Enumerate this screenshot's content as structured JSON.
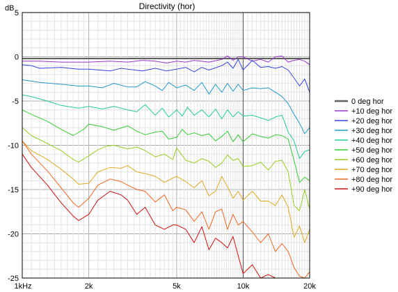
{
  "chart_data": {
    "type": "line",
    "title": "Directivity (hor)",
    "ylabel": "dB",
    "xlabel": "",
    "x_scale": "log",
    "xlim": [
      1000,
      20000
    ],
    "ylim": [
      -25,
      5
    ],
    "grid": true,
    "legend_placement": "right",
    "x_ticks": [
      {
        "value": 1000,
        "label": "1kHz"
      },
      {
        "value": 2000,
        "label": "2k"
      },
      {
        "value": 5000,
        "label": "5k"
      },
      {
        "value": 10000,
        "label": "10k"
      },
      {
        "value": 20000,
        "label": "20k"
      }
    ],
    "y_ticks": [
      {
        "value": 5,
        "label": "5"
      },
      {
        "value": 0,
        "label": "0"
      },
      {
        "value": -5,
        "label": "-5"
      },
      {
        "value": -10,
        "label": "-10"
      },
      {
        "value": -15,
        "label": "-15"
      },
      {
        "value": -20,
        "label": "-20"
      },
      {
        "value": -25,
        "label": "-25"
      }
    ],
    "series": [
      {
        "name": "0 deg hor",
        "color": "#5f5f5f",
        "x": [
          1000,
          1200,
          1500,
          2000,
          2500,
          3000,
          4000,
          5000,
          6000,
          7000,
          8000,
          9000,
          10000,
          12000,
          14000,
          16000,
          18000,
          20000
        ],
        "y": [
          -0.2,
          -0.2,
          -0.2,
          -0.2,
          -0.2,
          -0.2,
          -0.2,
          -0.2,
          -0.2,
          -0.2,
          -0.2,
          -0.2,
          -0.2,
          -0.2,
          -0.2,
          -0.2,
          -0.2,
          -0.2
        ]
      },
      {
        "name": "+10 deg hor",
        "color": "#9933cc",
        "x": [
          1000,
          1200,
          1500,
          2000,
          2500,
          3000,
          3500,
          4000,
          4500,
          5000,
          5500,
          6000,
          7000,
          8000,
          8500,
          9000,
          9500,
          10000,
          11000,
          12000,
          13000,
          14000,
          15000,
          16000,
          17000,
          18000,
          19000,
          20000
        ],
        "y": [
          -0.5,
          -0.5,
          -0.6,
          -0.6,
          -0.5,
          -0.6,
          -0.4,
          -0.5,
          -0.7,
          -0.5,
          -0.6,
          -0.4,
          -0.6,
          -0.3,
          0.1,
          -0.4,
          0.0,
          0.0,
          -0.5,
          -0.3,
          -0.6,
          0.0,
          0.1,
          -0.6,
          -0.4,
          -0.3,
          -0.5,
          -0.9
        ]
      },
      {
        "name": "+20 deg hor",
        "color": "#3344dd",
        "x": [
          1000,
          1100,
          1200,
          1500,
          1800,
          2000,
          2500,
          2800,
          3000,
          3500,
          4000,
          4500,
          5000,
          5500,
          6000,
          6500,
          7000,
          8000,
          8500,
          9000,
          9500,
          10000,
          11000,
          12000,
          13000,
          14000,
          15000,
          16000,
          17000,
          18000,
          19000,
          20000
        ],
        "y": [
          -0.9,
          -1.0,
          -1.3,
          -1.2,
          -1.4,
          -1.4,
          -1.6,
          -1.3,
          -1.4,
          -1.6,
          -1.3,
          -1.6,
          -1.4,
          -1.2,
          -1.7,
          -1.2,
          -1.5,
          -1.0,
          -0.6,
          -1.3,
          -0.3,
          -1.5,
          -0.4,
          -1.2,
          -1.1,
          -1.3,
          -1.1,
          -1.5,
          -2.4,
          -3.3,
          -2.5,
          -4.0
        ]
      },
      {
        "name": "+30 deg hor",
        "color": "#2299cc",
        "x": [
          1000,
          1200,
          1500,
          1800,
          2000,
          2300,
          2600,
          3000,
          3300,
          3600,
          4000,
          4300,
          4600,
          5000,
          5500,
          6000,
          6500,
          7000,
          7500,
          8000,
          8500,
          9000,
          9500,
          10000,
          11000,
          12000,
          13000,
          14000,
          15000,
          16000,
          17000,
          18000,
          19000,
          20000
        ],
        "y": [
          -2.6,
          -2.9,
          -3.1,
          -3.3,
          -3.3,
          -3.5,
          -3.0,
          -3.4,
          -3.4,
          -2.8,
          -3.3,
          -3.8,
          -2.9,
          -3.5,
          -3.2,
          -3.8,
          -2.9,
          -4.2,
          -3.1,
          -4.0,
          -3.0,
          -3.9,
          -3.1,
          -3.8,
          -3.5,
          -3.6,
          -3.5,
          -4.0,
          -4.5,
          -5.3,
          -6.5,
          -7.5,
          -8.7,
          -8.0
        ]
      },
      {
        "name": "+40 deg hor",
        "color": "#22cc99",
        "x": [
          1000,
          1100,
          1300,
          1500,
          1800,
          2000,
          2300,
          2600,
          3000,
          3300,
          3600,
          4000,
          4300,
          4600,
          5000,
          5300,
          5600,
          6000,
          6500,
          7000,
          7500,
          8000,
          8500,
          9000,
          9500,
          10000,
          11000,
          12000,
          13000,
          14000,
          15000,
          16000,
          17000,
          18000,
          19000,
          20000
        ],
        "y": [
          -4.3,
          -4.5,
          -5.0,
          -5.5,
          -5.8,
          -5.6,
          -5.9,
          -5.6,
          -6.0,
          -6.2,
          -5.4,
          -6.6,
          -5.8,
          -6.8,
          -6.0,
          -6.7,
          -5.7,
          -6.6,
          -6.0,
          -6.8,
          -5.9,
          -7.0,
          -6.0,
          -6.8,
          -6.2,
          -6.7,
          -6.6,
          -6.9,
          -7.2,
          -6.8,
          -6.6,
          -8.5,
          -9.5,
          -11.5,
          -10.7,
          -10.5
        ]
      },
      {
        "name": "+50 deg hor",
        "color": "#33cc33",
        "x": [
          1000,
          1100,
          1300,
          1500,
          1700,
          1900,
          2000,
          2300,
          2600,
          3000,
          3300,
          3600,
          4000,
          4300,
          4600,
          5000,
          5300,
          5600,
          6000,
          6500,
          7000,
          7500,
          8000,
          8500,
          9000,
          9500,
          10000,
          11000,
          12000,
          13000,
          14000,
          15000,
          16000,
          17000,
          18000,
          19000,
          20000
        ],
        "y": [
          -6.0,
          -6.5,
          -7.3,
          -8.2,
          -8.9,
          -8.2,
          -7.6,
          -7.9,
          -8.3,
          -7.8,
          -8.4,
          -8.8,
          -8.5,
          -8.4,
          -9.3,
          -9.1,
          -8.2,
          -8.8,
          -8.6,
          -8.9,
          -8.7,
          -9.5,
          -9.0,
          -8.4,
          -9.6,
          -8.8,
          -9.6,
          -8.7,
          -9.0,
          -9.2,
          -8.8,
          -8.9,
          -9.3,
          -11.7,
          -14.2,
          -13.6,
          -14.0
        ]
      },
      {
        "name": "+60 deg hor",
        "color": "#99cc22",
        "x": [
          1000,
          1100,
          1300,
          1500,
          1700,
          1800,
          2000,
          2200,
          2400,
          2600,
          3000,
          3300,
          3600,
          4000,
          4400,
          4800,
          5000,
          5500,
          6000,
          6500,
          7000,
          7500,
          8000,
          8500,
          9000,
          9500,
          10000,
          11000,
          12000,
          13000,
          14000,
          15000,
          16000,
          17000,
          18000,
          19000,
          20000
        ],
        "y": [
          -8.0,
          -8.9,
          -9.8,
          -10.6,
          -11.6,
          -11.9,
          -11.2,
          -10.5,
          -10.1,
          -10.0,
          -10.4,
          -10.2,
          -10.6,
          -11.3,
          -11.0,
          -11.6,
          -10.3,
          -11.7,
          -12.0,
          -11.5,
          -11.8,
          -12.5,
          -12.0,
          -11.1,
          -11.7,
          -11.5,
          -12.4,
          -12.3,
          -11.9,
          -12.8,
          -11.8,
          -11.7,
          -13.0,
          -16.8,
          -17.4,
          -15.0,
          -17.2
        ]
      },
      {
        "name": "+70 deg hor",
        "color": "#ddaa22",
        "x": [
          1000,
          1100,
          1300,
          1500,
          1700,
          1800,
          2000,
          2200,
          2500,
          2800,
          3000,
          3300,
          3600,
          4000,
          4400,
          4800,
          5000,
          5500,
          6000,
          6500,
          7000,
          7500,
          8000,
          8500,
          9000,
          9500,
          10000,
          11000,
          12000,
          13000,
          14000,
          15000,
          16000,
          17000,
          18000,
          19000,
          20000
        ],
        "y": [
          -9.5,
          -10.6,
          -11.6,
          -12.7,
          -13.8,
          -14.4,
          -14.3,
          -13.0,
          -12.5,
          -12.6,
          -12.3,
          -13.0,
          -13.2,
          -13.5,
          -14.2,
          -13.7,
          -13.5,
          -14.1,
          -14.8,
          -14.0,
          -15.7,
          -15.2,
          -13.5,
          -14.7,
          -16.0,
          -15.2,
          -16.2,
          -15.2,
          -16.3,
          -16.3,
          -16.8,
          -15.6,
          -17.0,
          -20.4,
          -19.1,
          -21.0,
          -19.5
        ]
      },
      {
        "name": "+80 deg hor",
        "color": "#ee6622",
        "x": [
          1000,
          1100,
          1300,
          1500,
          1700,
          1800,
          2000,
          2200,
          2500,
          2800,
          3000,
          3300,
          3600,
          4000,
          4400,
          4800,
          5000,
          5500,
          6000,
          6500,
          7000,
          7500,
          8000,
          8500,
          9000,
          9500,
          10000,
          11000,
          12000,
          13000,
          14000,
          15000,
          16000,
          17000,
          18000,
          19000,
          20000
        ],
        "y": [
          -9.5,
          -11.0,
          -12.9,
          -14.8,
          -16.5,
          -17.0,
          -16.0,
          -14.5,
          -13.8,
          -14.1,
          -14.5,
          -15.0,
          -15.2,
          -16.4,
          -15.6,
          -17.4,
          -17.0,
          -17.3,
          -18.6,
          -17.5,
          -19.5,
          -17.5,
          -17.2,
          -19.5,
          -17.8,
          -19.0,
          -18.6,
          -19.8,
          -21.0,
          -20.0,
          -22.0,
          -21.1,
          -22.0,
          -23.8,
          -24.8,
          -25.0,
          -24.3
        ]
      },
      {
        "name": "+90 deg hor",
        "color": "#cc1111",
        "x": [
          1000,
          1100,
          1300,
          1500,
          1700,
          1800,
          2000,
          2200,
          2500,
          2800,
          3000,
          3300,
          3600,
          4000,
          4400,
          4800,
          5000,
          5500,
          6000,
          6500,
          7000,
          7500,
          8000,
          8500,
          9000,
          9500,
          10000,
          11000,
          12000,
          13000,
          14000,
          15000,
          16000,
          17000,
          18000,
          19000,
          20000
        ],
        "y": [
          -11.0,
          -12.5,
          -14.5,
          -16.5,
          -18.0,
          -18.5,
          -17.8,
          -16.2,
          -15.2,
          -15.6,
          -16.2,
          -17.8,
          -17.0,
          -19.0,
          -19.5,
          -19.0,
          -19.0,
          -19.5,
          -21.0,
          -19.2,
          -21.8,
          -20.5,
          -21.0,
          -21.6,
          -20.3,
          -22.5,
          -24.5,
          -23.5,
          -25.0,
          -24.6,
          -25.0,
          -25.0,
          -25.0,
          -25.0,
          -25.0,
          -25.0,
          -25.0
        ]
      }
    ]
  }
}
